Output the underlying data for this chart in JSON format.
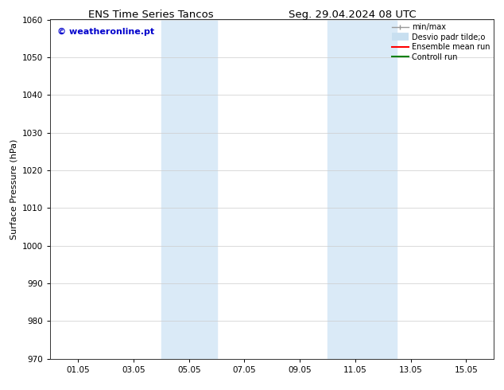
{
  "title": "ENS Time Series Tancos",
  "title2": "Seg. 29.04.2024 08 UTC",
  "ylabel": "Surface Pressure (hPa)",
  "ylim": [
    970,
    1060
  ],
  "yticks": [
    970,
    980,
    990,
    1000,
    1010,
    1020,
    1030,
    1040,
    1050,
    1060
  ],
  "xlim_start": 0.0,
  "xlim_end": 16.0,
  "xtick_positions": [
    1,
    3,
    5,
    7,
    9,
    11,
    13,
    15
  ],
  "xtick_labels": [
    "01.05",
    "03.05",
    "05.05",
    "07.05",
    "09.05",
    "11.05",
    "13.05",
    "15.05"
  ],
  "shaded_bands": [
    {
      "x_start": 4.0,
      "x_end": 6.0,
      "color": "#daeaf7"
    },
    {
      "x_start": 10.0,
      "x_end": 12.5,
      "color": "#daeaf7"
    }
  ],
  "watermark_text": "© weatheronline.pt",
  "watermark_color": "#0000cc",
  "legend_entries": [
    {
      "label": "min/max",
      "color": "#aaaaaa",
      "lw": 1.0
    },
    {
      "label": "Desvio padr tilde;o",
      "color": "#c8dff0",
      "lw": 6
    },
    {
      "label": "Ensemble mean run",
      "color": "red",
      "lw": 1.5
    },
    {
      "label": "Controll run",
      "color": "green",
      "lw": 1.5
    }
  ],
  "background_color": "#ffffff",
  "plot_bg_color": "#ffffff",
  "grid_color": "#cccccc",
  "title_fontsize": 9.5,
  "ylabel_fontsize": 8,
  "tick_fontsize": 7.5,
  "watermark_fontsize": 8,
  "legend_fontsize": 7
}
